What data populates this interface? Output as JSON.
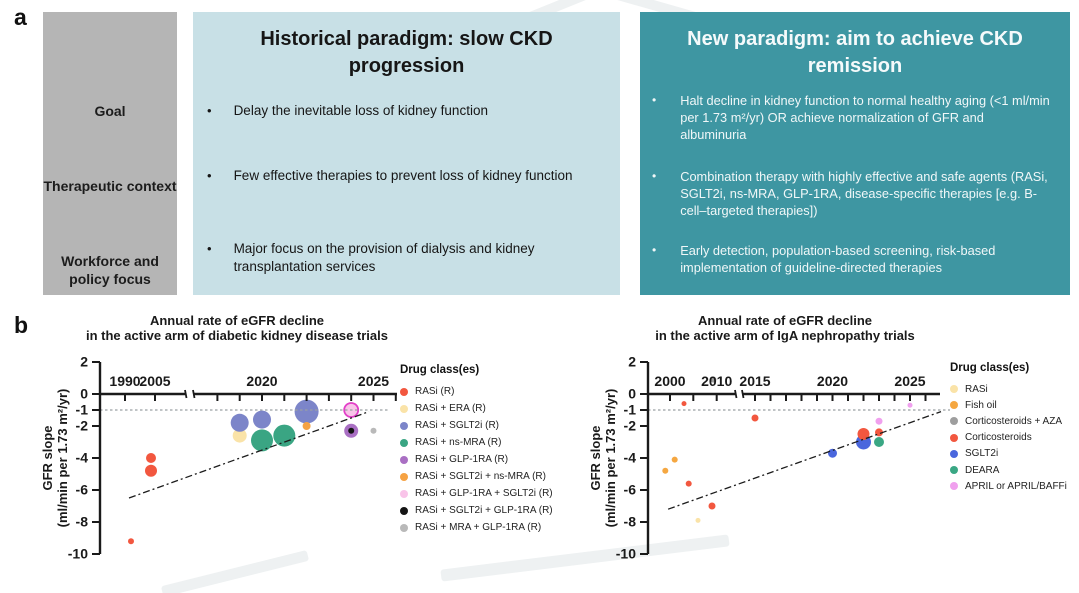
{
  "panel_a": {
    "label": "a",
    "colors": {
      "row_header_bg": "#b5b5b5",
      "historical_bg": "#c8e0e6",
      "new_bg": "#3e96a2"
    },
    "rows": [
      {
        "label": "Goal"
      },
      {
        "label": "Therapeutic context"
      },
      {
        "label": "Workforce and policy focus"
      }
    ],
    "historical": {
      "title": "Historical paradigm:  slow CKD progression",
      "bullets": [
        "Delay the inevitable loss of kidney function",
        "Few effective therapies to prevent loss of kidney function",
        "Major focus on the provision of dialysis and kidney transplantation services"
      ]
    },
    "new": {
      "title": "New paradigm:  aim to achieve CKD remission",
      "bullets": [
        "Halt decline in kidney function to normal healthy aging (<1 ml/min per 1.73 m²/yr) OR achieve normalization of GFR and albuminuria",
        "Combination therapy with highly effective and safe agents (RASi, SGLT2i, ns-MRA, GLP-1RA, disease-specific therapies [e.g. B-cell–targeted therapies])",
        "Early detection, population-based screening, risk-based implementation of guideline-directed therapies"
      ]
    }
  },
  "panel_b": {
    "label": "b"
  },
  "chart_data": [
    {
      "type": "scatter",
      "title_lines": [
        "Annual rate of eGFR decline",
        "in the active arm of diabetic kidney disease trials"
      ],
      "ylabel_lines": [
        "GFR slope",
        "(ml/min per 1.73 m²/yr)"
      ],
      "ylim": [
        -10,
        2
      ],
      "y_ticks": [
        2,
        0,
        -1,
        -2,
        -4,
        -6,
        -8,
        -10
      ],
      "x_axis_break": true,
      "x_ticks_before_break": [
        1990,
        2005
      ],
      "x_labels_before_break": [
        1990,
        2005
      ],
      "x_ticks_after_break": [
        2018,
        2019,
        2020,
        2021,
        2022,
        2023,
        2024,
        2025,
        2026
      ],
      "x_labels_after_break": [
        2020,
        2025
      ],
      "reference_line_y": -1,
      "trend_line": {
        "from": {
          "year": 1992,
          "gfr": -6.5
        },
        "to": {
          "year": 2024.8,
          "gfr": -1.1
        }
      },
      "legend_title": "Drug class(es)",
      "classes": [
        {
          "label": "RASi (R)",
          "color": "#F2573F"
        },
        {
          "label": "RASi + ERA (R)",
          "color": "#FAE3A8"
        },
        {
          "label": "RASi + SGLT2i (R)",
          "color": "#7C85C9"
        },
        {
          "label": "RASi + ns-MRA (R)",
          "color": "#3AA583"
        },
        {
          "label": "RASi + GLP-1RA (R)",
          "color": "#A96FC3"
        },
        {
          "label": "RASi + SGLT2i + ns-MRA (R)",
          "color": "#F6A243"
        },
        {
          "label": "RASi + GLP-1RA + SGLT2i (R)",
          "color": "#F9C4E9"
        },
        {
          "label": "RASi + SGLT2i + GLP-1RA (R)",
          "color": "#141414"
        },
        {
          "label": "RASi + MRA + GLP-1RA (R)",
          "color": "#B9B9B9"
        }
      ],
      "points": [
        {
          "year": 1993,
          "gfr": -9.2,
          "r": 3,
          "class": 0
        },
        {
          "year": 2003,
          "gfr": -4.0,
          "r": 5,
          "class": 0
        },
        {
          "year": 2003,
          "gfr": -4.8,
          "r": 6,
          "class": 0
        },
        {
          "year": 2019,
          "gfr": -2.6,
          "r": 7,
          "class": 1
        },
        {
          "year": 2019,
          "gfr": -1.8,
          "r": 9,
          "class": 2
        },
        {
          "year": 2020,
          "gfr": -2.9,
          "r": 11,
          "class": 3
        },
        {
          "year": 2020,
          "gfr": -1.6,
          "r": 9,
          "class": 2
        },
        {
          "year": 2021,
          "gfr": -2.6,
          "r": 11,
          "class": 3
        },
        {
          "year": 2022,
          "gfr": -1.1,
          "r": 12,
          "class": 2
        },
        {
          "year": 2022,
          "gfr": -2.0,
          "r": 4,
          "class": 5
        },
        {
          "year": 2024,
          "gfr": -1.0,
          "r": 7,
          "class": 6,
          "ring": "#E23FC8"
        },
        {
          "year": 2024,
          "gfr": -2.3,
          "r": 7,
          "class": 4
        },
        {
          "year": 2024,
          "gfr": -2.3,
          "r": 3,
          "class": 7
        },
        {
          "year": 2025,
          "gfr": -2.3,
          "r": 3,
          "class": 8
        }
      ]
    },
    {
      "type": "scatter",
      "title_lines": [
        "Annual rate of eGFR decline",
        "in the active arm of IgA nephropathy trials"
      ],
      "ylabel_lines": [
        "GFR slope",
        "(ml/min per 1.73 m²/yr)"
      ],
      "ylim": [
        -10,
        2
      ],
      "y_ticks": [
        2,
        0,
        -1,
        -2,
        -4,
        -6,
        -8,
        -10
      ],
      "x_axis_break": true,
      "x_ticks_before_break": [
        2000,
        2005,
        2010
      ],
      "x_labels_before_break": [
        2000,
        2010
      ],
      "x_ticks_after_break": [
        2015,
        2016,
        2017,
        2018,
        2019,
        2020,
        2021,
        2022,
        2023,
        2024,
        2025,
        2026
      ],
      "x_labels_after_break": [
        2015,
        2020,
        2025
      ],
      "reference_line_y": -1,
      "trend_line": {
        "from": {
          "year": 1999.6,
          "gfr": -7.2
        },
        "to": {
          "year": 2027,
          "gfr": -1.1
        }
      },
      "legend_title": "Drug class(es)",
      "classes": [
        {
          "label": "RASi",
          "color": "#FAE3A8"
        },
        {
          "label": "Fish oil",
          "color": "#F5A741"
        },
        {
          "label": "Corticosteroids + AZA",
          "color": "#9E9E9E"
        },
        {
          "label": "Corticosteroids",
          "color": "#F2573F"
        },
        {
          "label": "SGLT2i",
          "color": "#4A67DD"
        },
        {
          "label": "DEARA",
          "color": "#3AA784"
        },
        {
          "label": "APRIL or APRIL/BAFFi",
          "color": "#F0A0EE"
        }
      ],
      "points": [
        {
          "year": 1999,
          "gfr": -4.8,
          "r": 3,
          "class": 1
        },
        {
          "year": 2001,
          "gfr": -4.1,
          "r": 3,
          "class": 1
        },
        {
          "year": 2003,
          "gfr": -0.6,
          "r": 2.5,
          "class": 3
        },
        {
          "year": 2004,
          "gfr": -5.6,
          "r": 3,
          "class": 3
        },
        {
          "year": 2006,
          "gfr": -7.9,
          "r": 2.5,
          "class": 0
        },
        {
          "year": 2009,
          "gfr": -7.0,
          "r": 3.5,
          "class": 3
        },
        {
          "year": 2009.3,
          "gfr": 0.9,
          "r": 3,
          "class": 2
        },
        {
          "year": 2015,
          "gfr": -1.5,
          "r": 3.5,
          "class": 3
        },
        {
          "year": 2020,
          "gfr": -3.7,
          "r": 4.5,
          "class": 4
        },
        {
          "year": 2022,
          "gfr": -3.0,
          "r": 7.5,
          "class": 4
        },
        {
          "year": 2022,
          "gfr": -2.5,
          "r": 6,
          "class": 3
        },
        {
          "year": 2023,
          "gfr": -2.4,
          "r": 4,
          "class": 3
        },
        {
          "year": 2023,
          "gfr": -3.0,
          "r": 5,
          "class": 5
        },
        {
          "year": 2023,
          "gfr": -1.7,
          "r": 3.5,
          "class": 6
        },
        {
          "year": 2025,
          "gfr": -0.7,
          "r": 2.5,
          "class": 6
        }
      ]
    }
  ]
}
